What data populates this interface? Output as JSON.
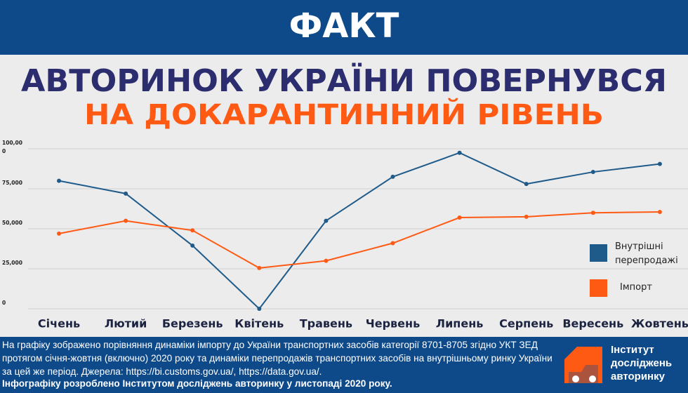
{
  "header": {
    "badge": "ФАКТ",
    "title_line1": "АВТОРИНОК УКРАЇНИ ПОВЕРНУВСЯ",
    "title_line2": "НА ДОКАРАНТИННИЙ РІВЕНЬ"
  },
  "chart_data": {
    "type": "line",
    "categories": [
      "Січень",
      "Лютий",
      "Березень",
      "Квітень",
      "Травень",
      "Червень",
      "Липень",
      "Серпень",
      "Вересень",
      "Жовтень"
    ],
    "series": [
      {
        "name": "Внутрішні перепродажі",
        "color": "#1f5b8a",
        "values": [
          80,
          72,
          39.5,
          0,
          55,
          82.5,
          97.5,
          78,
          85.5,
          90.5
        ]
      },
      {
        "name": "Імпорт",
        "color": "#ff5a14",
        "values": [
          47,
          55,
          49,
          25.5,
          30,
          41,
          57,
          57.5,
          60,
          60.5
        ]
      }
    ],
    "ylim": [
      0,
      100
    ],
    "yticks": [
      0,
      {
        "value": 25,
        "label": "25,000"
      },
      {
        "value": 50,
        "label": "50,000"
      },
      {
        "value": 75,
        "label": "75,000"
      },
      {
        "value": 100,
        "label": "100,000"
      }
    ],
    "grid": true
  },
  "footer": {
    "description": "На графіку зображено порівняння динаміки імпорту до України транспортних засобів категорії 8701-8705 згідно УКТ ЗЕД протягом січня-жовтня (включно) 2020 року та динаміки перепродажів транспортних засобів на внутрішньому ринку України за цей же період. Джерела: https://bi.customs.gov.ua/, https://data.gov.ua/.",
    "credit": "Інфографіку розроблено Інститутом досліджень авторинку у листопаді 2020 року.",
    "logo_text": "Інститут досліджень авторинку"
  }
}
